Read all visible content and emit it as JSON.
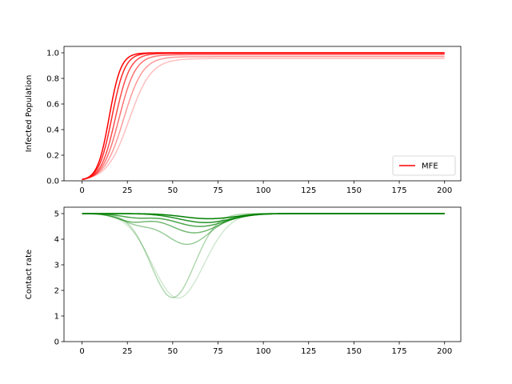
{
  "chart_data": [
    {
      "type": "line",
      "title": "",
      "xlabel": "",
      "ylabel": "Infected Population",
      "xlim": [
        -9.95,
        208.95
      ],
      "ylim": [
        0.0,
        1.05
      ],
      "xticks": [
        0,
        25,
        50,
        75,
        100,
        125,
        150,
        175,
        200
      ],
      "yticks": [
        0.0,
        0.2,
        0.4,
        0.6,
        0.8,
        1.0
      ],
      "ytick_format": 1,
      "grid": false,
      "legend": {
        "placement": "lower right",
        "entries": [
          "MFE"
        ]
      },
      "series_color": "#ff0000",
      "model": "logistic",
      "series": [
        {
          "name": "MFE",
          "opacity": 1.0,
          "asymptote": 1.0,
          "midpoint": 15.0,
          "rate": 0.31
        },
        {
          "opacity": 0.85,
          "asymptote": 0.999,
          "midpoint": 16.5,
          "rate": 0.28
        },
        {
          "opacity": 0.7,
          "asymptote": 0.995,
          "midpoint": 18.5,
          "rate": 0.25
        },
        {
          "opacity": 0.55,
          "asymptote": 0.985,
          "midpoint": 20.5,
          "rate": 0.22
        },
        {
          "opacity": 0.4,
          "asymptote": 0.97,
          "midpoint": 23.0,
          "rate": 0.19
        },
        {
          "opacity": 0.25,
          "asymptote": 0.955,
          "midpoint": 26.0,
          "rate": 0.165
        }
      ]
    },
    {
      "type": "line",
      "title": "",
      "xlabel": "",
      "ylabel": "Contact rate",
      "xlim": [
        -9.95,
        208.95
      ],
      "ylim": [
        0,
        5.25
      ],
      "xticks": [
        0,
        25,
        50,
        75,
        100,
        125,
        150,
        175,
        200
      ],
      "yticks": [
        0,
        1,
        2,
        3,
        4,
        5
      ],
      "ytick_format": 0,
      "grid": false,
      "series_color": "#008000",
      "model": "baseline_minus_dips",
      "baseline": 5.0,
      "series": [
        {
          "opacity": 1.0,
          "dips": [
            {
              "center": 70,
              "depth": 0.2,
              "width": 20
            }
          ]
        },
        {
          "opacity": 0.85,
          "dips": [
            {
              "center": 68,
              "depth": 0.35,
              "width": 20
            }
          ]
        },
        {
          "opacity": 0.7,
          "dips": [
            {
              "center": 65,
              "depth": 0.5,
              "width": 20
            },
            {
              "center": 30,
              "depth": 0.15,
              "width": 12
            }
          ]
        },
        {
          "opacity": 0.55,
          "dips": [
            {
              "center": 62,
              "depth": 0.75,
              "width": 19
            },
            {
              "center": 28,
              "depth": 0.3,
              "width": 12
            }
          ]
        },
        {
          "opacity": 0.4,
          "dips": [
            {
              "center": 58,
              "depth": 1.2,
              "width": 18
            },
            {
              "center": 30,
              "depth": 0.35,
              "width": 12
            }
          ]
        },
        {
          "opacity": 0.3,
          "dips": [
            {
              "center": 50,
              "depth": 3.28,
              "width": 17
            }
          ]
        },
        {
          "opacity": 0.18,
          "dips": [
            {
              "center": 53,
              "depth": 3.3,
              "width": 20
            }
          ]
        }
      ]
    }
  ]
}
